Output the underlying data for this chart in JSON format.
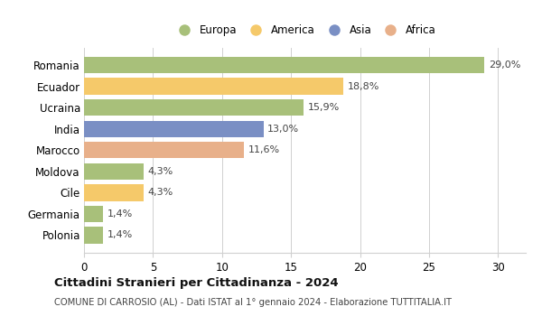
{
  "categories": [
    "Polonia",
    "Germania",
    "Cile",
    "Moldova",
    "Marocco",
    "India",
    "Ucraina",
    "Ecuador",
    "Romania"
  ],
  "values": [
    1.4,
    1.4,
    4.3,
    4.3,
    11.6,
    13.0,
    15.9,
    18.8,
    29.0
  ],
  "labels": [
    "1,4%",
    "1,4%",
    "4,3%",
    "4,3%",
    "11,6%",
    "13,0%",
    "15,9%",
    "18,8%",
    "29,0%"
  ],
  "colors": [
    "#a8c07a",
    "#a8c07a",
    "#f5c96a",
    "#a8c07a",
    "#e8b08a",
    "#7a8fc4",
    "#a8c07a",
    "#f5c96a",
    "#a8c07a"
  ],
  "legend_labels": [
    "Europa",
    "America",
    "Asia",
    "Africa"
  ],
  "legend_colors": [
    "#a8c07a",
    "#f5c96a",
    "#7a8fc4",
    "#e8b08a"
  ],
  "title": "Cittadini Stranieri per Cittadinanza - 2024",
  "subtitle": "COMUNE DI CARROSIO (AL) - Dati ISTAT al 1° gennaio 2024 - Elaborazione TUTTITALIA.IT",
  "xlim": [
    0,
    32
  ],
  "xticks": [
    0,
    5,
    10,
    15,
    20,
    25,
    30
  ],
  "background_color": "#ffffff",
  "grid_color": "#d0d0d0"
}
